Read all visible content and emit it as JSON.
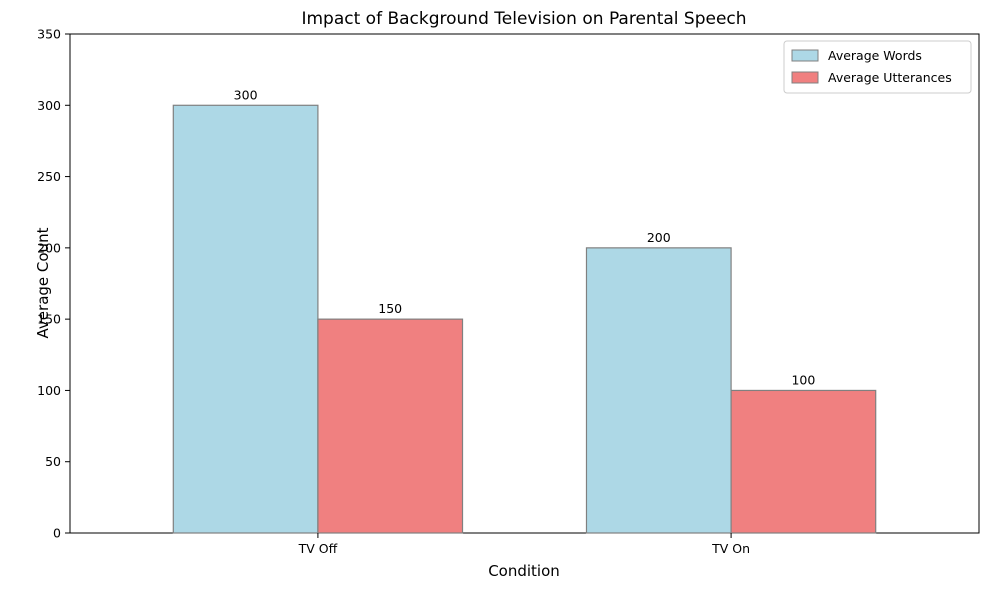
{
  "chart_data": {
    "type": "bar",
    "title": "Impact of Background Television on Parental Speech",
    "xlabel": "Condition",
    "ylabel": "Average Count",
    "categories": [
      "TV Off",
      "TV On"
    ],
    "series": [
      {
        "name": "Average Words",
        "values": [
          300,
          200
        ],
        "color": "#add8e6"
      },
      {
        "name": "Average Utterances",
        "values": [
          150,
          100
        ],
        "color": "#f08080"
      }
    ],
    "ylim": [
      0,
      350
    ],
    "yticks": [
      0,
      50,
      100,
      150,
      200,
      250,
      300,
      350
    ],
    "grid": false,
    "legend_position": "top-right",
    "bar_edge_color": "#808080"
  }
}
